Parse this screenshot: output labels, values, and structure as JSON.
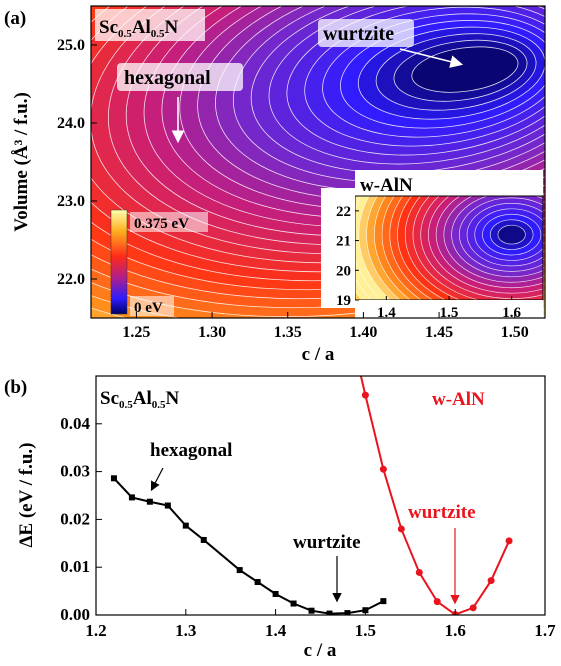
{
  "panel_a": {
    "label": "(a)",
    "material_main": "Sc",
    "material_sub1": "0.5",
    "material_mid": "Al",
    "material_sub2": "0.5",
    "material_end": "N",
    "xlabel": "c / a",
    "ylabel": "Volume (Å³ / f.u.)",
    "annotations": {
      "hexagonal": "hexagonal",
      "wurtzite": "wurtzite"
    },
    "colorbar": {
      "max_label": "0.375 eV",
      "min_label": "0 eV"
    },
    "inset_title": "w-AlN"
  },
  "panel_b": {
    "label": "(b)",
    "material_main": "Sc",
    "material_sub1": "0.5",
    "material_mid": "Al",
    "material_sub2": "0.5",
    "material_end": "N",
    "xlabel": "c / a",
    "ylabel": "ΔE (eV / f.u.)",
    "annotations": {
      "hexagonal": "hexagonal",
      "wurtzite_black": "wurtzite",
      "wurtzite_red": "wurtzite",
      "walN": "w-AlN"
    }
  },
  "colors": {
    "scaln": "#000000",
    "aln": "#e8141e"
  },
  "chart_data": [
    {
      "type": "heatmap",
      "title": "Sc0.5Al0.5N",
      "xlabel": "c / a",
      "ylabel": "Volume (Å³ / f.u.)",
      "xlim": [
        1.22,
        1.52
      ],
      "ylim": [
        21.5,
        25.5
      ],
      "x_ticks": [
        "1.25",
        "1.30",
        "1.35",
        "1.40",
        "1.45",
        "1.50"
      ],
      "y_ticks": [
        "22.0",
        "23.0",
        "24.0",
        "25.0"
      ],
      "colorbar_range": [
        0,
        0.375
      ],
      "minima": [
        {
          "name": "wurtzite",
          "x": 1.47,
          "y": 24.7
        },
        {
          "name": "hexagonal",
          "x": 1.27,
          "y": 23.8
        }
      ],
      "inset": {
        "title": "w-AlN",
        "xlim": [
          1.35,
          1.65
        ],
        "ylim": [
          19,
          22.5
        ],
        "x_ticks": [
          "1.4",
          "1.5",
          "1.6"
        ],
        "y_ticks": [
          "19",
          "20",
          "21",
          "22"
        ],
        "minimum": {
          "x": 1.6,
          "y": 21.2
        }
      }
    },
    {
      "type": "line",
      "xlabel": "c / a",
      "ylabel": "ΔE (eV / f.u.)",
      "xlim": [
        1.2,
        1.7
      ],
      "ylim": [
        0,
        0.05
      ],
      "x_ticks": [
        "1.2",
        "1.3",
        "1.4",
        "1.5",
        "1.6",
        "1.7"
      ],
      "y_ticks": [
        "0.00",
        "0.01",
        "0.02",
        "0.03",
        "0.04"
      ],
      "series": [
        {
          "name": "Sc0.5Al0.5N",
          "x": [
            1.22,
            1.24,
            1.26,
            1.28,
            1.3,
            1.32,
            1.36,
            1.38,
            1.4,
            1.42,
            1.44,
            1.46,
            1.48,
            1.5,
            1.52
          ],
          "values": [
            0.0286,
            0.0246,
            0.0237,
            0.0229,
            0.0187,
            0.0157,
            0.0094,
            0.0069,
            0.0044,
            0.0024,
            0.0009,
            0.0003,
            0.0004,
            0.001,
            0.0029
          ]
        },
        {
          "name": "w-AlN",
          "x": [
            1.48,
            1.5,
            1.52,
            1.54,
            1.56,
            1.58,
            1.6,
            1.62,
            1.64,
            1.66
          ],
          "values": [
            0.062,
            0.046,
            0.0305,
            0.018,
            0.0089,
            0.0028,
            0.0001,
            0.0015,
            0.0072,
            0.0155
          ]
        }
      ]
    }
  ]
}
